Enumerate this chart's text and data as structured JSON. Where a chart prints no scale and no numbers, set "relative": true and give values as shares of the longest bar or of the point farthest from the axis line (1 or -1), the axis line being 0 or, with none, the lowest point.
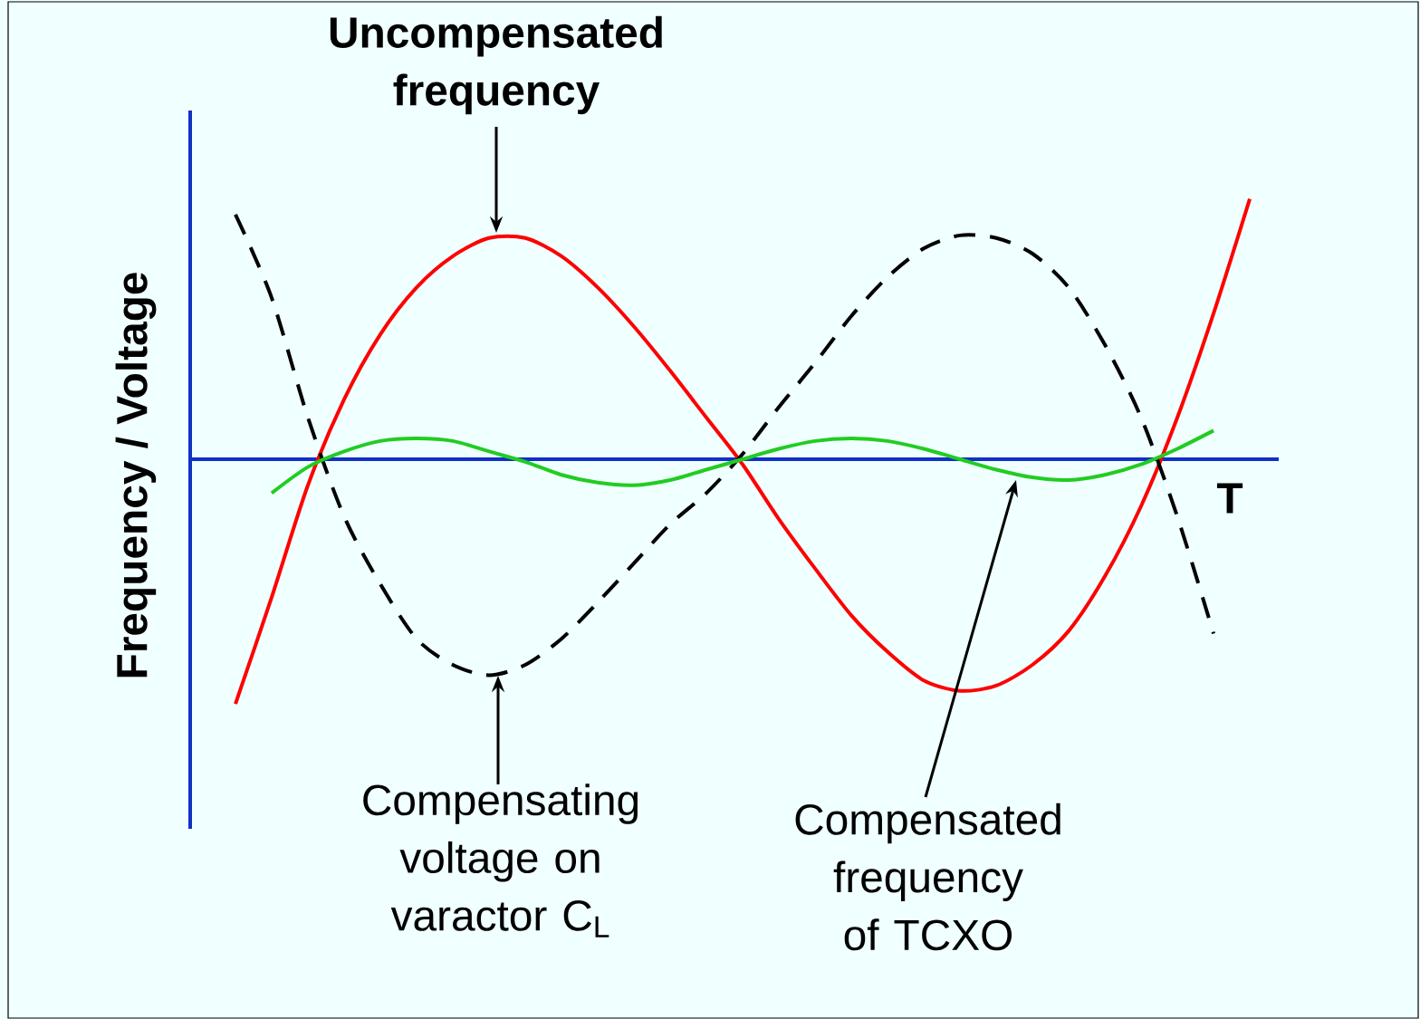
{
  "chart_data": {
    "type": "line",
    "relative": true,
    "xlabel": "T",
    "ylabel": "Frequency / Voltage",
    "ref_lines": [
      {
        "axis": "y",
        "value": 0,
        "color": "#1030c8"
      }
    ],
    "categories": [
      null,
      null,
      null,
      null,
      null,
      null,
      null,
      null,
      null,
      null,
      null,
      null,
      null,
      null,
      null,
      null,
      null,
      null,
      null,
      null,
      null,
      null,
      null,
      null,
      null,
      null,
      null,
      null,
      null
    ],
    "series": [
      {
        "name": "Uncompensated frequency",
        "color": "#ff0000",
        "line_style": "solid",
        "values": [
          -0.94,
          -0.53,
          -0.1,
          0.23,
          0.48,
          0.66,
          0.78,
          0.85,
          0.85,
          0.78,
          0.66,
          0.51,
          0.34,
          0.16,
          -0.02,
          -0.23,
          -0.42,
          -0.6,
          -0.74,
          -0.85,
          -0.89,
          -0.87,
          -0.79,
          -0.66,
          -0.45,
          -0.18,
          0.16,
          0.56,
          1.0
        ]
      },
      {
        "name": "Compensating voltage on varactor C$_{L}$",
        "color": "#000000",
        "line_style": "dashed",
        "values": [
          0.94,
          0.62,
          0.16,
          -0.22,
          -0.48,
          -0.69,
          -0.79,
          -0.83,
          -0.79,
          -0.69,
          -0.55,
          -0.4,
          -0.25,
          -0.13,
          0.02,
          0.2,
          0.37,
          0.55,
          0.7,
          0.81,
          0.86,
          0.85,
          0.79,
          0.66,
          0.44,
          0.16,
          -0.22,
          -0.67,
          null
        ]
      },
      {
        "name": "Compensated frequency of TCXO",
        "color": "#22cc22",
        "line_style": "solid",
        "values": [
          null,
          -0.13,
          -0.03,
          0.03,
          0.07,
          0.08,
          0.07,
          0.03,
          -0.01,
          -0.06,
          -0.09,
          -0.1,
          -0.08,
          -0.04,
          0.0,
          0.04,
          0.07,
          0.08,
          0.07,
          0.04,
          0.0,
          -0.04,
          -0.07,
          -0.08,
          -0.06,
          -0.02,
          0.04,
          0.11,
          null
        ]
      }
    ]
  }
}
